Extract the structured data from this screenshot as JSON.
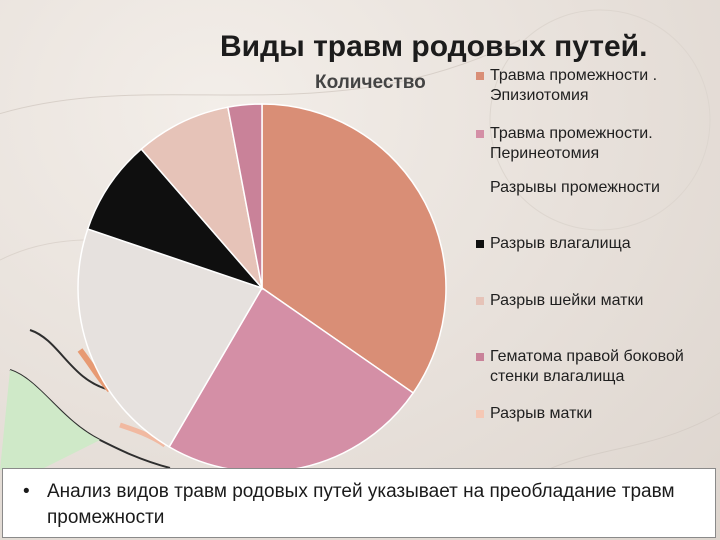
{
  "slide": {
    "title": "Виды травм родовых путей.",
    "bullet": "•",
    "bullet_text": "Анализ видов травм родовых путей  указывает на преобладание травм промежности"
  },
  "chart_data": {
    "type": "pie",
    "title": "Количество",
    "unit": "%",
    "series": [
      {
        "name": "Травма промежности . Эпизиотомия",
        "value": 35,
        "color": "#d98e76",
        "swatch": true
      },
      {
        "name": "Травма промежности. Перинеотомия",
        "value": 24,
        "color": "#d48fa6",
        "swatch": true
      },
      {
        "name": "Разрывы  промежности",
        "value": 22,
        "color": "#e6e1de",
        "swatch": false
      },
      {
        "name": "Разрыв влагалища",
        "value": 8.5,
        "color": "#0f0f0f",
        "swatch": true
      },
      {
        "name": "Разрыв шейки матки",
        "value": 8.5,
        "color": "#e6c3b8",
        "swatch": true
      },
      {
        "name": "Гематома правой боковой стенки влагалища",
        "value": 3,
        "color": "#c98299",
        "swatch": true
      },
      {
        "name": "Разрыв матки",
        "value": 0,
        "color": "#f5c8b5",
        "swatch": true
      }
    ],
    "legend_position": "right"
  }
}
